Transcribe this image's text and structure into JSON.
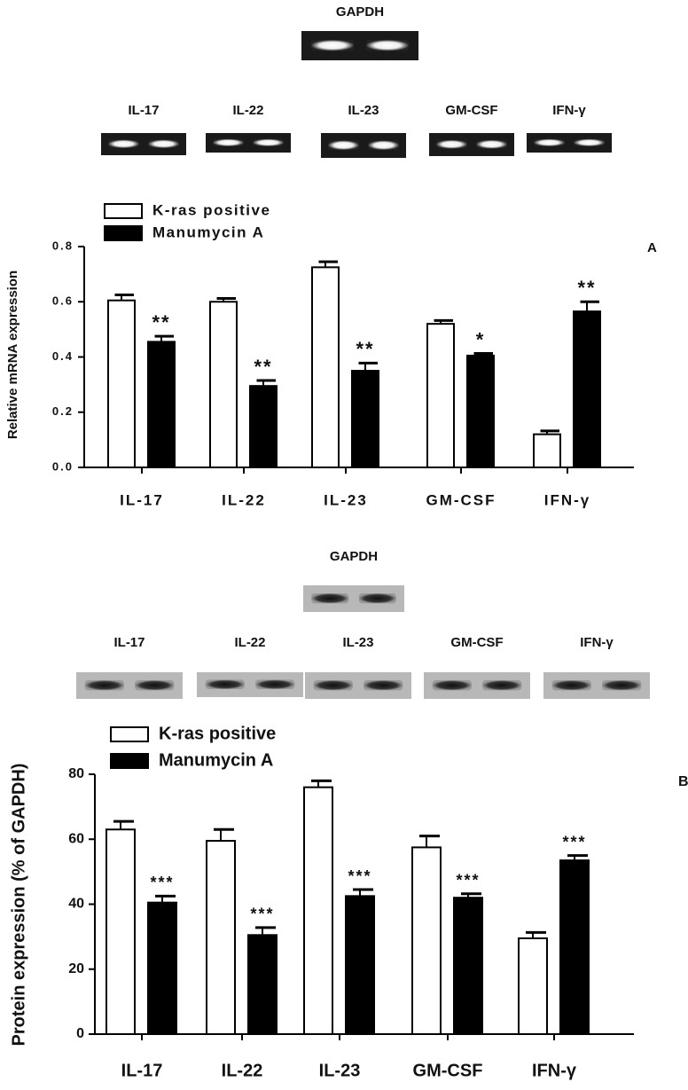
{
  "chart_data": [
    {
      "type": "bar",
      "panel": "A",
      "loading_control": "GAPDH",
      "blot_labels": [
        "IL-17",
        "IL-22",
        "IL-23",
        "GM-CSF",
        "IFN-γ"
      ],
      "y_label": "Relative mRNA expression",
      "categories": [
        "IL-17",
        "IL-22",
        "IL-23",
        "GM-CSF",
        "IFN-γ"
      ],
      "series": [
        {
          "name": "K-ras positive",
          "color": "#ffffff",
          "values": [
            0.605,
            0.6,
            0.725,
            0.52,
            0.12
          ],
          "errors": [
            0.02,
            0.012,
            0.02,
            0.012,
            0.012
          ]
        },
        {
          "name": "Manumycin A",
          "color": "#000000",
          "values": [
            0.455,
            0.295,
            0.35,
            0.405,
            0.565
          ],
          "errors": [
            0.02,
            0.02,
            0.028,
            0.008,
            0.035
          ],
          "annotations": [
            "**",
            "**",
            "**",
            "*",
            "**"
          ]
        }
      ],
      "ylim": [
        0,
        0.8
      ],
      "yticks": [
        {
          "value": 0,
          "label": "0.0"
        },
        0.2,
        0.4,
        0.6,
        0.8
      ],
      "legend": "upper left"
    },
    {
      "type": "bar",
      "panel": "B",
      "loading_control": "GAPDH",
      "blot_labels": [
        "IL-17",
        "IL-22",
        "IL-23",
        "GM-CSF",
        "IFN-γ"
      ],
      "y_label": "Protein expression (% of GAPDH)",
      "categories": [
        "IL-17",
        "IL-22",
        "IL-23",
        "GM-CSF",
        "IFN-γ"
      ],
      "series": [
        {
          "name": "K-ras positive",
          "color": "#ffffff",
          "values": [
            63,
            59.5,
            76,
            57.5,
            29.5
          ],
          "errors": [
            2.5,
            3.5,
            2,
            3.5,
            1.8
          ]
        },
        {
          "name": "Manumycin A",
          "color": "#000000",
          "values": [
            40.5,
            30.5,
            42.5,
            42,
            53.5
          ],
          "errors": [
            2,
            2.3,
            2,
            1.2,
            1.5
          ],
          "annotations": [
            "***",
            "***",
            "***",
            "***",
            "***"
          ]
        }
      ],
      "ylim": [
        0,
        80
      ],
      "yticks": [
        0,
        20,
        40,
        60,
        80
      ],
      "legend": "upper left"
    }
  ]
}
